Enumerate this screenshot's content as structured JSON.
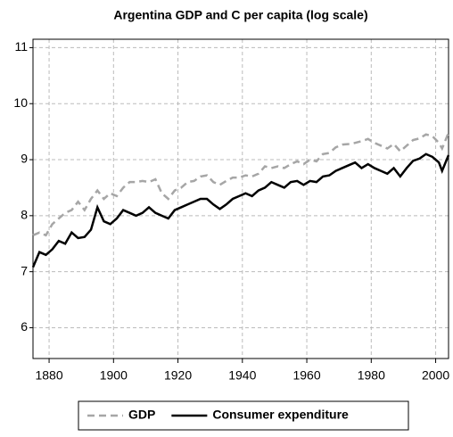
{
  "chart_data": {
    "type": "line",
    "title": "Argentina GDP and C per capita (log scale)",
    "x": [
      1875,
      1877,
      1879,
      1881,
      1883,
      1885,
      1887,
      1889,
      1891,
      1893,
      1895,
      1897,
      1899,
      1901,
      1903,
      1905,
      1907,
      1909,
      1911,
      1913,
      1915,
      1917,
      1919,
      1921,
      1923,
      1925,
      1927,
      1929,
      1931,
      1933,
      1935,
      1937,
      1939,
      1941,
      1943,
      1945,
      1947,
      1949,
      1951,
      1953,
      1955,
      1957,
      1959,
      1961,
      1963,
      1965,
      1967,
      1969,
      1971,
      1973,
      1975,
      1977,
      1979,
      1981,
      1983,
      1985,
      1987,
      1989,
      1991,
      1993,
      1995,
      1997,
      1999,
      2001,
      2002,
      2004
    ],
    "series": [
      {
        "name": "GDP",
        "color": "#a6a6a6",
        "dashed": true,
        "values": [
          7.65,
          7.7,
          7.65,
          7.85,
          7.95,
          8.05,
          8.1,
          8.25,
          8.1,
          8.3,
          8.45,
          8.3,
          8.4,
          8.35,
          8.5,
          8.6,
          8.6,
          8.62,
          8.6,
          8.65,
          8.4,
          8.3,
          8.45,
          8.5,
          8.6,
          8.62,
          8.7,
          8.72,
          8.6,
          8.55,
          8.62,
          8.68,
          8.68,
          8.72,
          8.7,
          8.75,
          8.88,
          8.85,
          8.88,
          8.85,
          8.92,
          8.97,
          8.92,
          9.0,
          8.97,
          9.1,
          9.12,
          9.22,
          9.27,
          9.28,
          9.3,
          9.33,
          9.37,
          9.3,
          9.25,
          9.2,
          9.28,
          9.15,
          9.25,
          9.35,
          9.38,
          9.45,
          9.42,
          9.3,
          9.2,
          9.48
        ]
      },
      {
        "name": "Consumer expenditure",
        "color": "#000000",
        "dashed": false,
        "values": [
          7.08,
          7.35,
          7.3,
          7.4,
          7.55,
          7.5,
          7.7,
          7.6,
          7.62,
          7.75,
          8.15,
          7.9,
          7.85,
          7.95,
          8.1,
          8.05,
          8.0,
          8.05,
          8.15,
          8.05,
          8.0,
          7.95,
          8.1,
          8.15,
          8.2,
          8.25,
          8.3,
          8.3,
          8.2,
          8.12,
          8.2,
          8.3,
          8.35,
          8.4,
          8.35,
          8.45,
          8.5,
          8.6,
          8.55,
          8.5,
          8.6,
          8.62,
          8.55,
          8.62,
          8.6,
          8.7,
          8.72,
          8.8,
          8.85,
          8.9,
          8.95,
          8.85,
          8.92,
          8.85,
          8.8,
          8.75,
          8.85,
          8.7,
          8.85,
          8.98,
          9.02,
          9.1,
          9.05,
          8.95,
          8.8,
          9.08
        ]
      }
    ],
    "xlim": [
      1875,
      2004
    ],
    "xticks": [
      1880,
      1900,
      1920,
      1940,
      1960,
      1980,
      2000
    ],
    "ylim": [
      5.45,
      11.15
    ],
    "yticks": [
      6,
      7,
      8,
      9,
      10,
      11
    ],
    "grid": true,
    "legend": "bottom"
  }
}
